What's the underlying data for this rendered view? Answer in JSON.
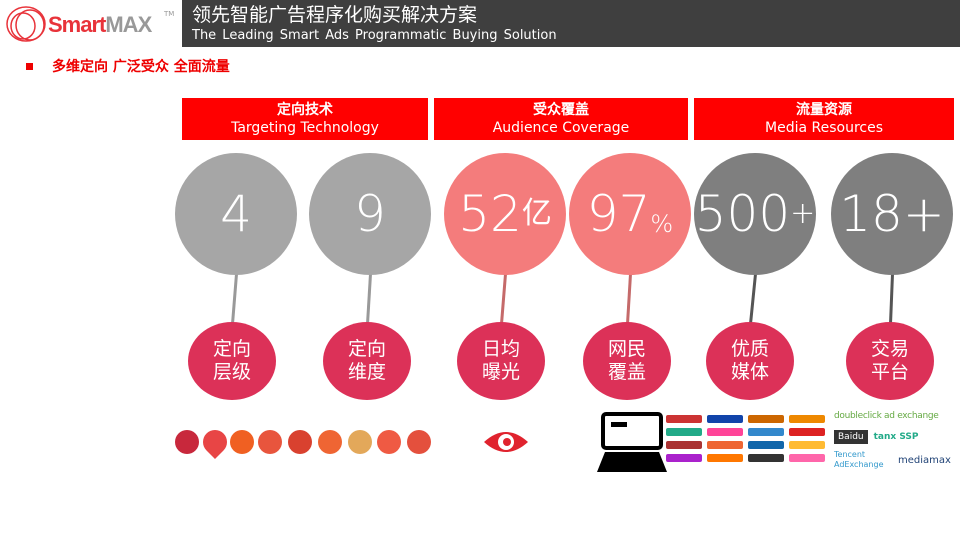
{
  "brand": {
    "logo_part1": "Smart",
    "logo_part2": "MAX",
    "tm": "TM"
  },
  "header": {
    "title_zh": "领先智能广告程序化购买解决方案",
    "title_en": "The Leading  Smart Ads Programmatic  Buying Solution"
  },
  "subtitle": "多维定向 广泛受众 全面流量",
  "sections": [
    {
      "zh": "定向技术",
      "en": "Targeting Technology"
    },
    {
      "zh": "受众覆盖",
      "en": "Audience Coverage"
    },
    {
      "zh": "流量资源",
      "en": "Media Resources"
    }
  ],
  "stats": [
    {
      "value": "4",
      "suffix": "",
      "label1": "定向",
      "label2": "层级",
      "color": "#a6a6a6"
    },
    {
      "value": "9",
      "suffix": "",
      "label1": "定向",
      "label2": "维度",
      "color": "#a6a6a6"
    },
    {
      "value": "52",
      "suffix": "亿",
      "label1": "日均",
      "label2": "曝光",
      "color": "#f47c7c"
    },
    {
      "value": "97",
      "suffix": "%",
      "label1": "网民",
      "label2": "覆盖",
      "color": "#f47c7c"
    },
    {
      "value": "500",
      "suffix": "+",
      "label1": "优质",
      "label2": "媒体",
      "color": "#7f7f7f"
    },
    {
      "value": "18+",
      "suffix": "",
      "label1": "交易",
      "label2": "平台",
      "color": "#7f7f7f"
    }
  ],
  "exchanges": [
    "doubleclick ad exchange",
    "Baidu",
    "tanx SSP",
    "Tencent AdExchange",
    "mediamax"
  ],
  "colors": {
    "accent": "#ff0000",
    "header_bg": "#3f3f3f",
    "label_circle": "#dc3158"
  }
}
